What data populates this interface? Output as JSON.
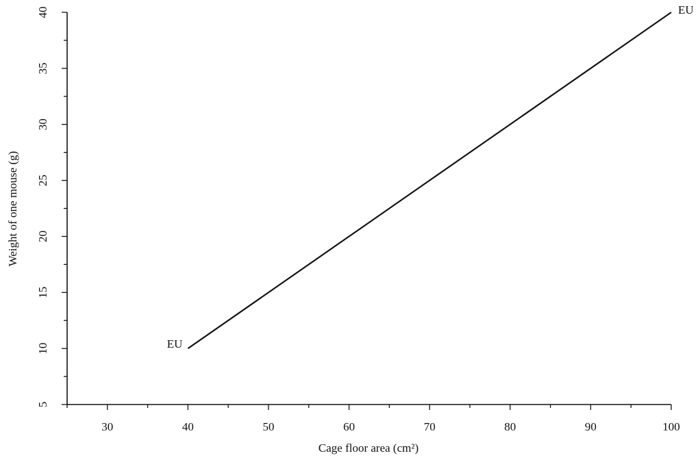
{
  "chart_data": {
    "type": "line",
    "title": "",
    "xlabel": "Cage floor area (cm²)",
    "ylabel": "Weight of one mouse (g)",
    "xlim": [
      25,
      100
    ],
    "ylim": [
      5,
      40
    ],
    "x_ticks": [
      30,
      40,
      50,
      60,
      70,
      80,
      90,
      100
    ],
    "x_minor_step": 5,
    "y_ticks": [
      5,
      10,
      15,
      20,
      25,
      30,
      35,
      40
    ],
    "y_minor_step": 2.5,
    "grid": false,
    "legend": "none",
    "series": [
      {
        "x": [
          40,
          100
        ],
        "y": [
          10,
          40
        ]
      }
    ],
    "annotations": [
      {
        "text": "EU",
        "x": 40,
        "y": 10,
        "placement": "left"
      },
      {
        "text": "EU",
        "x": 100,
        "y": 40,
        "placement": "right"
      }
    ],
    "colors": {
      "line": "#111111",
      "axis": "#111111"
    }
  }
}
